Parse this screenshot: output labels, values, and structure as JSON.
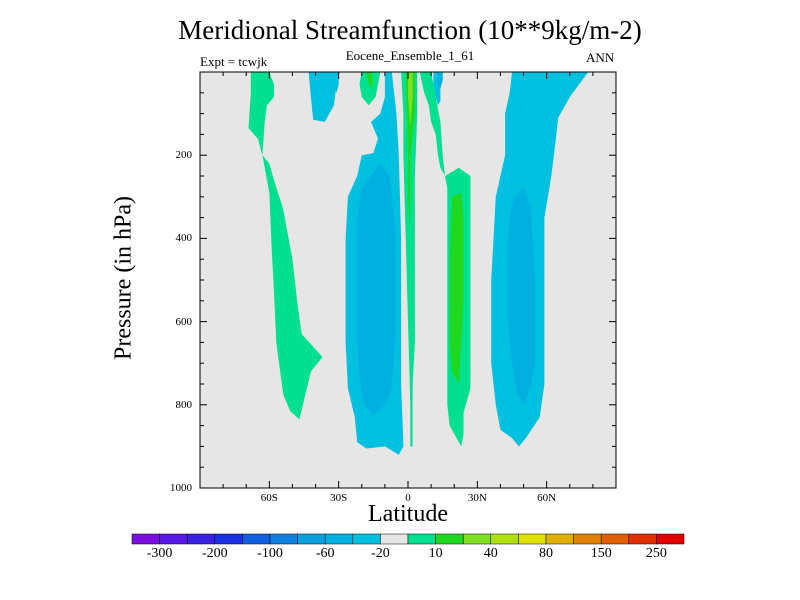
{
  "chart_data": {
    "type": "contour",
    "title": "Meridional Streamfunction (10**9kg/m-2)",
    "subtitle": "Eocene_Ensemble_1_61",
    "left_label": "Expt = tcwjk",
    "right_label": "ANN",
    "xlabel": "Latitude",
    "ylabel": "Pressure (in hPa)",
    "xlim": [
      -90,
      90
    ],
    "ylim": [
      1000,
      0
    ],
    "x_ticks": [
      {
        "value": -60,
        "label": "60S"
      },
      {
        "value": -30,
        "label": "30S"
      },
      {
        "value": 0,
        "label": "0"
      },
      {
        "value": 30,
        "label": "30N"
      },
      {
        "value": 60,
        "label": "60N"
      }
    ],
    "y_ticks": [
      {
        "value": 200,
        "label": "200"
      },
      {
        "value": 400,
        "label": "400"
      },
      {
        "value": 600,
        "label": "600"
      },
      {
        "value": 800,
        "label": "800"
      },
      {
        "value": 1000,
        "label": "1000"
      }
    ],
    "background_color": "#e6e6e6",
    "colorbar": {
      "colors": [
        "#7a10e0",
        "#5a18e8",
        "#3a20e0",
        "#1830e0",
        "#1060e0",
        "#1080e0",
        "#0aa0e0",
        "#00b0e0",
        "#00c0e0",
        "#e6e6e6",
        "#00e090",
        "#20d820",
        "#80e020",
        "#b0e010",
        "#e0e000",
        "#e0b000",
        "#e08000",
        "#e06000",
        "#e03000",
        "#e00000"
      ],
      "tick_labels": [
        "-300",
        "-200",
        "-100",
        "-60",
        "-20",
        "10",
        "40",
        "80",
        "150",
        "250"
      ]
    },
    "regions": [
      {
        "color": "#00e090",
        "points": [
          [
            -68,
            0
          ],
          [
            -60,
            0
          ],
          [
            -58,
            30
          ],
          [
            -58,
            60
          ],
          [
            -61,
            80
          ],
          [
            -62,
            120
          ],
          [
            -63,
            200
          ],
          [
            -65,
            160
          ],
          [
            -69,
            135
          ],
          [
            -68,
            50
          ]
        ]
      },
      {
        "color": "#00e090",
        "points": [
          [
            -63,
            200
          ],
          [
            -60,
            220
          ],
          [
            -58,
            260
          ],
          [
            -54,
            330
          ],
          [
            -50,
            450
          ],
          [
            -48,
            550
          ],
          [
            -46,
            630
          ],
          [
            -37,
            685
          ],
          [
            -42,
            720
          ],
          [
            -47,
            835
          ],
          [
            -51,
            815
          ],
          [
            -54,
            775
          ],
          [
            -57,
            650
          ],
          [
            -58,
            530
          ],
          [
            -59,
            420
          ],
          [
            -60,
            290
          ]
        ]
      },
      {
        "color": "#00c0e0",
        "points": [
          [
            -43,
            0
          ],
          [
            -31,
            0
          ],
          [
            -31,
            30
          ],
          [
            -32,
            80
          ],
          [
            -36,
            120
          ],
          [
            -41,
            115
          ],
          [
            -42,
            60
          ]
        ]
      },
      {
        "color": "#00e090",
        "points": [
          [
            -20,
            0
          ],
          [
            -12,
            0
          ],
          [
            -13,
            30
          ],
          [
            -14,
            60
          ],
          [
            -17,
            80
          ],
          [
            -20,
            60
          ],
          [
            -21,
            30
          ]
        ]
      },
      {
        "color": "#00c0e0",
        "points": [
          [
            -10,
            0
          ],
          [
            -7,
            0
          ],
          [
            -5,
            100
          ],
          [
            -4,
            200
          ],
          [
            -3,
            400
          ],
          [
            -3,
            600
          ],
          [
            -3,
            750
          ],
          [
            -2,
            900
          ],
          [
            -4,
            920
          ],
          [
            -10,
            900
          ],
          [
            -18,
            905
          ],
          [
            -22,
            890
          ],
          [
            -23,
            830
          ],
          [
            -26,
            760
          ],
          [
            -27,
            650
          ],
          [
            -27,
            550
          ],
          [
            -27,
            400
          ],
          [
            -26,
            300
          ],
          [
            -22,
            250
          ],
          [
            -20,
            200
          ],
          [
            -15,
            195
          ],
          [
            -13,
            160
          ],
          [
            -16,
            120
          ],
          [
            -12,
            100
          ],
          [
            -10,
            60
          ]
        ]
      },
      {
        "color": "#00b0e0",
        "points": [
          [
            -12,
            220
          ],
          [
            -8,
            250
          ],
          [
            -7,
            300
          ],
          [
            -5,
            400
          ],
          [
            -5,
            500
          ],
          [
            -5,
            600
          ],
          [
            -6,
            680
          ],
          [
            -7,
            760
          ],
          [
            -10,
            800
          ],
          [
            -15,
            825
          ],
          [
            -19,
            800
          ],
          [
            -21,
            740
          ],
          [
            -22,
            650
          ],
          [
            -22,
            550
          ],
          [
            -22,
            450
          ],
          [
            -22,
            350
          ],
          [
            -20,
            280
          ]
        ]
      },
      {
        "color": "#00e090",
        "points": [
          [
            -3,
            0
          ],
          [
            4,
            0
          ],
          [
            4,
            100
          ],
          [
            3,
            250
          ],
          [
            3,
            400
          ],
          [
            3,
            550
          ],
          [
            3,
            650
          ],
          [
            2,
            750
          ],
          [
            2,
            850
          ],
          [
            2,
            900
          ],
          [
            1,
            900
          ],
          [
            1,
            800
          ],
          [
            0,
            600
          ],
          [
            -1,
            400
          ],
          [
            -2,
            200
          ],
          [
            -2,
            100
          ]
        ]
      },
      {
        "color": "#20d820",
        "points": [
          [
            -1,
            0
          ],
          [
            3,
            0
          ],
          [
            3,
            100
          ],
          [
            1,
            200
          ],
          [
            1,
            300
          ],
          [
            1,
            380
          ],
          [
            0,
            300
          ],
          [
            0,
            200
          ]
        ]
      },
      {
        "color": "#20d820",
        "points": [
          [
            -18,
            0
          ],
          [
            -16,
            0
          ],
          [
            -15,
            20
          ],
          [
            -16,
            40
          ],
          [
            -17,
            30
          ]
        ]
      },
      {
        "color": "#80e020",
        "points": [
          [
            0,
            0
          ],
          [
            2,
            0
          ],
          [
            2,
            60
          ],
          [
            1,
            130
          ],
          [
            0,
            60
          ]
        ]
      },
      {
        "color": "#00e090",
        "points": [
          [
            5,
            0
          ],
          [
            10,
            0
          ],
          [
            12,
            60
          ],
          [
            14,
            120
          ],
          [
            15,
            200
          ],
          [
            16,
            250
          ],
          [
            17,
            280
          ],
          [
            17,
            350
          ],
          [
            17,
            500
          ],
          [
            17,
            600
          ],
          [
            17,
            700
          ],
          [
            17,
            800
          ],
          [
            18,
            850
          ],
          [
            23,
            900
          ],
          [
            24,
            870
          ],
          [
            24,
            820
          ],
          [
            27,
            760
          ],
          [
            27,
            650
          ],
          [
            27,
            550
          ],
          [
            27,
            450
          ],
          [
            27,
            350
          ],
          [
            27,
            250
          ],
          [
            22,
            230
          ],
          [
            16,
            250
          ],
          [
            14,
            230
          ],
          [
            13,
            200
          ],
          [
            12,
            150
          ],
          [
            10,
            120
          ],
          [
            9,
            80
          ],
          [
            7,
            50
          ]
        ]
      },
      {
        "color": "#20d820",
        "points": [
          [
            19,
            300
          ],
          [
            23,
            290
          ],
          [
            24,
            350
          ],
          [
            24,
            450
          ],
          [
            24,
            550
          ],
          [
            23,
            650
          ],
          [
            22,
            750
          ],
          [
            19,
            720
          ],
          [
            18,
            650
          ],
          [
            18,
            550
          ],
          [
            18,
            450
          ]
        ]
      },
      {
        "color": "#00c0e0",
        "points": [
          [
            11,
            0
          ],
          [
            15,
            0
          ],
          [
            14,
            30
          ],
          [
            14,
            70
          ],
          [
            13,
            80
          ],
          [
            12,
            60
          ],
          [
            11,
            30
          ]
        ]
      },
      {
        "color": "#00b0e0",
        "points": [
          [
            13,
            0
          ],
          [
            15,
            0
          ],
          [
            15,
            20
          ],
          [
            14,
            40
          ],
          [
            13,
            30
          ]
        ]
      },
      {
        "color": "#00c0e0",
        "points": [
          [
            45,
            0
          ],
          [
            78,
            0
          ],
          [
            74,
            30
          ],
          [
            70,
            60
          ],
          [
            68,
            80
          ],
          [
            65,
            110
          ],
          [
            64,
            160
          ],
          [
            62,
            250
          ],
          [
            59,
            350
          ],
          [
            59,
            500
          ],
          [
            59,
            650
          ],
          [
            59,
            750
          ],
          [
            57,
            830
          ],
          [
            51,
            880
          ],
          [
            48,
            900
          ],
          [
            45,
            880
          ],
          [
            40,
            860
          ],
          [
            38,
            800
          ],
          [
            36,
            700
          ],
          [
            36,
            600
          ],
          [
            36,
            500
          ],
          [
            37,
            400
          ],
          [
            38,
            300
          ],
          [
            40,
            250
          ],
          [
            42,
            200
          ],
          [
            42,
            100
          ],
          [
            44,
            50
          ]
        ]
      },
      {
        "color": "#00b0e0",
        "points": [
          [
            46,
            300
          ],
          [
            50,
            280
          ],
          [
            53,
            320
          ],
          [
            54,
            400
          ],
          [
            55,
            500
          ],
          [
            55,
            600
          ],
          [
            55,
            700
          ],
          [
            53,
            760
          ],
          [
            50,
            800
          ],
          [
            47,
            770
          ],
          [
            45,
            700
          ],
          [
            43,
            600
          ],
          [
            43,
            500
          ],
          [
            43,
            400
          ],
          [
            44,
            350
          ]
        ]
      },
      {
        "color": "#00c0e0",
        "points": [
          [
            -33,
            0
          ],
          [
            -30,
            0
          ],
          [
            -30,
            30
          ],
          [
            -31,
            50
          ],
          [
            -33,
            30
          ]
        ]
      }
    ]
  }
}
